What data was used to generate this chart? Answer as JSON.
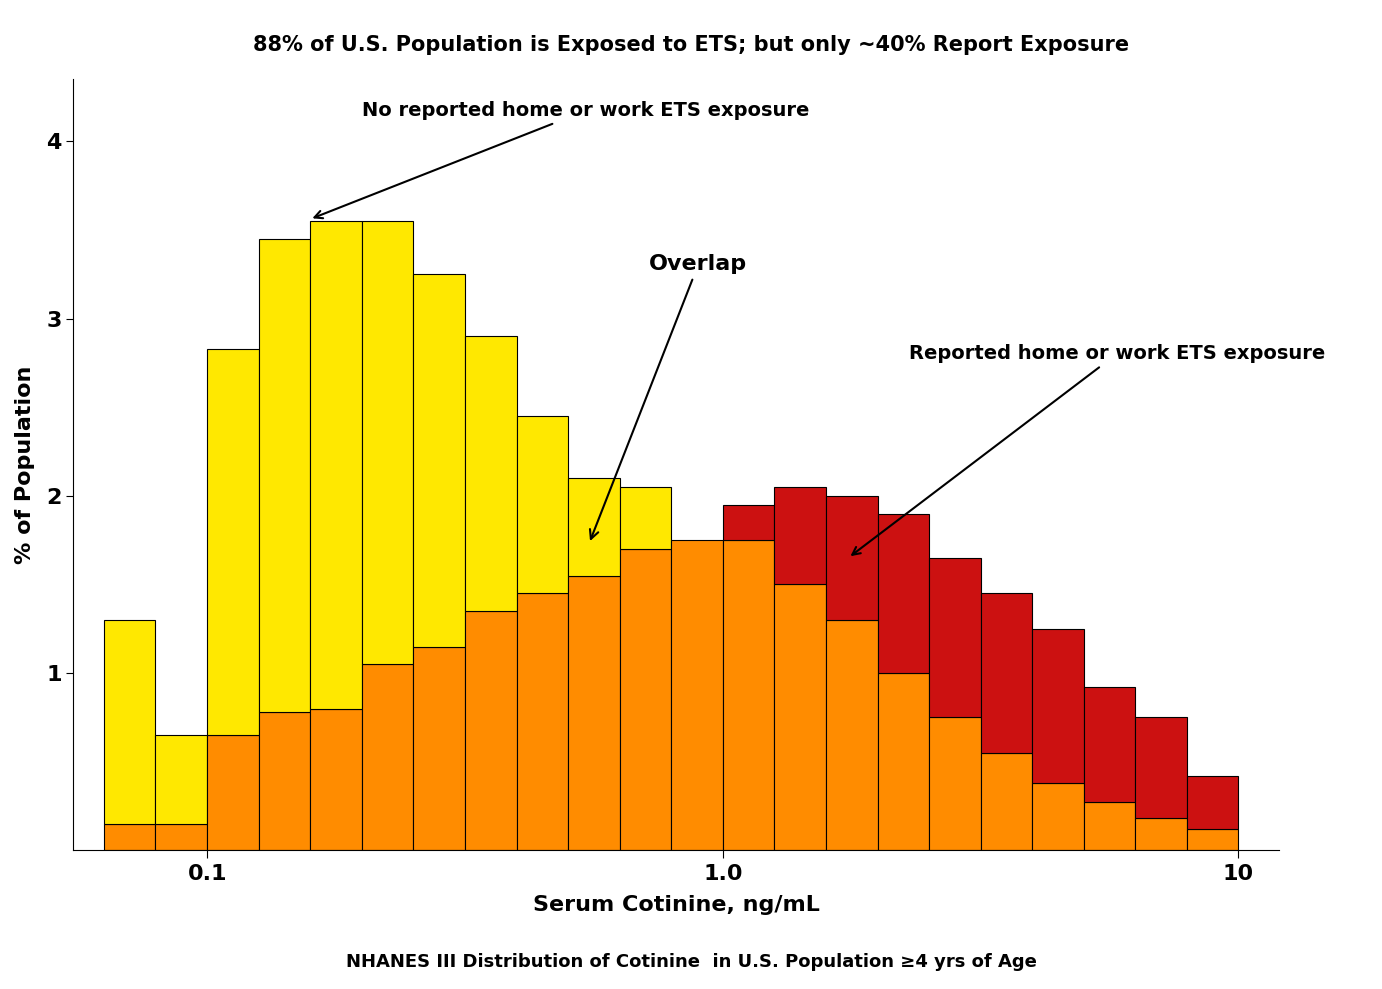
{
  "title": "88% of U.S. Population is Exposed to ETS; but only ~40% Report Exposure",
  "xlabel": "Serum Cotinine, ng/mL",
  "ylabel": "% of Population",
  "subtitle": "NHANES III Distribution of Cotinine  in U.S. Population ≥4 yrs of Age",
  "annotation1": "No reported home or work ETS exposure",
  "annotation2": "Overlap",
  "annotation3": "Reported home or work ETS exposure",
  "title_fontsize": 15,
  "label_fontsize": 16,
  "subtitle_fontsize": 13,
  "annotation_fontsize": 14,
  "background_color": "#ffffff",
  "yellow_color": "#FFE800",
  "orange_color": "#FF8C00",
  "red_color": "#CC1111",
  "bar_edge_color": "#000000",
  "bar_linewidth": 0.8,
  "xlim_log": [
    0.055,
    12.0
  ],
  "ylim": [
    0,
    4.35
  ],
  "yticks": [
    1,
    2,
    3,
    4
  ],
  "bin_edges": [
    0.063,
    0.079,
    0.1,
    0.126,
    0.158,
    0.2,
    0.251,
    0.316,
    0.398,
    0.501,
    0.631,
    0.794,
    1.0,
    1.259,
    1.585,
    1.995,
    2.512,
    3.162,
    3.981,
    5.012,
    6.31,
    7.943,
    10.0
  ],
  "yellow_heights": [
    1.3,
    0.65,
    2.83,
    3.45,
    3.55,
    3.55,
    3.25,
    2.9,
    2.45,
    2.1,
    2.05,
    1.75,
    1.7,
    0.0,
    0.0,
    0.0,
    0.0,
    0.0,
    0.0,
    0.0,
    0.0,
    0.0
  ],
  "orange_heights": [
    0.15,
    0.15,
    0.65,
    0.78,
    0.8,
    1.05,
    1.15,
    1.35,
    1.45,
    1.55,
    1.7,
    1.75,
    1.75,
    1.5,
    1.3,
    1.0,
    0.75,
    0.55,
    0.38,
    0.27,
    0.18,
    0.12
  ],
  "red_heights": [
    0.0,
    0.0,
    0.0,
    0.0,
    0.0,
    0.0,
    0.0,
    0.0,
    0.0,
    0.0,
    0.0,
    0.0,
    1.95,
    2.05,
    2.0,
    1.9,
    1.65,
    1.45,
    1.25,
    0.92,
    0.75,
    0.42
  ]
}
